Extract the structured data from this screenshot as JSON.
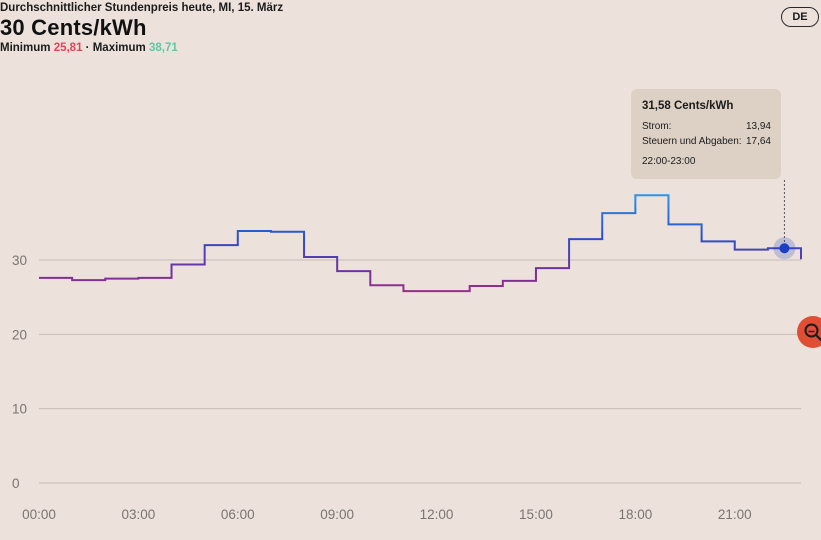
{
  "header": {
    "subtitle": "Durchschnittlicher Stundenpreis heute, MI, 15. März",
    "title": "30 Cents/kWh",
    "min_label": "Minimum",
    "min_value": "25,81",
    "separator": "·",
    "max_label": "Maximum",
    "max_value": "38,71"
  },
  "language_button": "DE",
  "icons": {
    "zoom": "zoom-search-icon"
  },
  "colors": {
    "background": "#ece1db",
    "grid": "#c9bdb5",
    "line_low": "#9b2f86",
    "line_mid": "#2b4fc8",
    "line_high": "#2f9ae6",
    "marker": "#1c3ec4",
    "min_value": "#e4425a",
    "max_value": "#5cc8a5",
    "zoom_button": "#e04e33",
    "tooltip_bg": "#ddd1c6"
  },
  "tooltip": {
    "title": "31,58 Cents/kWh",
    "rows": [
      {
        "label": "Strom:",
        "value": "13,94"
      },
      {
        "label": "Steuern und Abgaben:",
        "value": "17,64"
      }
    ],
    "time": "22:00-23:00",
    "hour": 22
  },
  "chart_data": {
    "type": "line",
    "step": true,
    "x": [
      0,
      1,
      2,
      3,
      4,
      5,
      6,
      7,
      8,
      9,
      10,
      11,
      12,
      13,
      14,
      15,
      16,
      17,
      18,
      19,
      20,
      21,
      22,
      23
    ],
    "y": [
      27.6,
      27.3,
      27.5,
      27.6,
      29.4,
      32.0,
      33.9,
      33.8,
      30.4,
      28.5,
      26.6,
      25.81,
      25.81,
      26.5,
      27.2,
      28.9,
      32.8,
      36.3,
      38.71,
      34.8,
      32.5,
      31.4,
      31.58,
      30.1
    ],
    "xlabel": "",
    "ylabel": "",
    "ylim": [
      0,
      40
    ],
    "yticks": [
      "0",
      "10",
      "20",
      "30"
    ],
    "xticks": [
      "00:00",
      "03:00",
      "06:00",
      "09:00",
      "12:00",
      "15:00",
      "18:00",
      "21:00"
    ],
    "grid": true
  }
}
